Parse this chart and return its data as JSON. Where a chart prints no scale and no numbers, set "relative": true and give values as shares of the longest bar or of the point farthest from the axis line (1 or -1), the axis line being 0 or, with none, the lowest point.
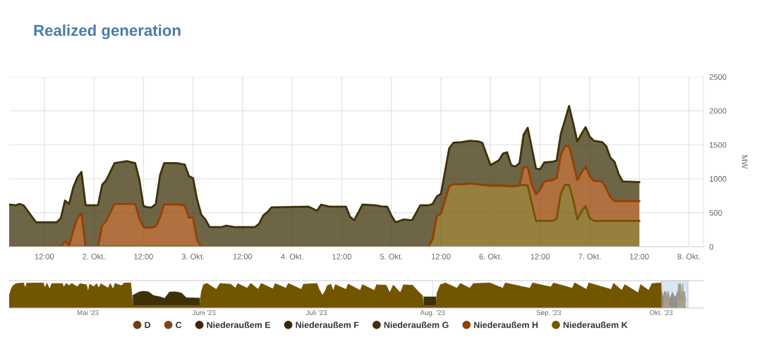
{
  "chart_data": [
    {
      "type": "area",
      "title": "Realized generation",
      "ylabel": "MW",
      "stacked": true,
      "x": [
        "2023-10-01T03:30",
        "2023-10-01T05:00",
        "2023-10-01T06:00",
        "2023-10-01T07:00",
        "2023-10-01T10:00",
        "2023-10-01T15:00",
        "2023-10-01T16:00",
        "2023-10-01T17:00",
        "2023-10-01T18:00",
        "2023-10-01T19:00",
        "2023-10-01T20:00",
        "2023-10-01T21:00",
        "2023-10-01T22:00",
        "2023-10-02T01:00",
        "2023-10-02T02:00",
        "2023-10-02T03:00",
        "2023-10-02T05:00",
        "2023-10-02T08:00",
        "2023-10-02T10:00",
        "2023-10-02T11:00",
        "2023-10-02T12:00",
        "2023-10-02T13:00",
        "2023-10-02T14:00",
        "2023-10-02T15:00",
        "2023-10-02T16:00",
        "2023-10-02T17:00",
        "2023-10-02T20:00",
        "2023-10-02T22:00",
        "2023-10-02T23:00",
        "2023-10-03T00:00",
        "2023-10-03T01:00",
        "2023-10-03T02:00",
        "2023-10-03T03:00",
        "2023-10-03T04:00",
        "2023-10-03T07:00",
        "2023-10-03T08:00",
        "2023-10-03T10:00",
        "2023-10-03T15:00",
        "2023-10-03T16:00",
        "2023-10-03T17:00",
        "2023-10-03T18:00",
        "2023-10-03T19:00",
        "2023-10-04T04:00",
        "2023-10-04T06:00",
        "2023-10-04T07:00",
        "2023-10-04T09:00",
        "2023-10-04T13:00",
        "2023-10-04T14:00",
        "2023-10-04T15:00",
        "2023-10-04T17:00",
        "2023-10-04T20:00",
        "2023-10-04T22:00",
        "2023-10-04T23:00",
        "2023-10-05T00:00",
        "2023-10-05T01:00",
        "2023-10-05T03:00",
        "2023-10-05T05:00",
        "2023-10-05T07:00",
        "2023-10-05T09:00",
        "2023-10-05T10:00",
        "2023-10-05T11:00",
        "2023-10-05T12:00",
        "2023-10-05T14:00",
        "2023-10-05T15:00",
        "2023-10-05T17:00",
        "2023-10-05T19:00",
        "2023-10-05T21:00",
        "2023-10-05T22:00",
        "2023-10-06T00:00",
        "2023-10-06T02:00",
        "2023-10-06T03:00",
        "2023-10-06T04:00",
        "2023-10-06T05:00",
        "2023-10-06T06:00",
        "2023-10-06T07:00",
        "2023-10-06T08:00",
        "2023-10-06T09:00",
        "2023-10-06T10:00",
        "2023-10-06T11:00",
        "2023-10-06T12:00",
        "2023-10-06T13:00",
        "2023-10-06T15:00",
        "2023-10-06T16:00",
        "2023-10-06T17:00",
        "2023-10-06T18:00",
        "2023-10-06T19:00",
        "2023-10-06T20:00",
        "2023-10-06T21:00",
        "2023-10-06T22:00",
        "2023-10-06T23:00",
        "2023-10-07T00:00",
        "2023-10-07T01:00",
        "2023-10-07T03:00",
        "2023-10-07T04:00",
        "2023-10-07T05:00",
        "2023-10-07T06:00",
        "2023-10-07T07:00",
        "2023-10-07T08:00",
        "2023-10-07T12:00"
      ],
      "series": [
        {
          "name": "Niederaußem K",
          "color": "#735500",
          "values": [
            0,
            0,
            0,
            0,
            0,
            0,
            0,
            0,
            0,
            0,
            0,
            0,
            0,
            0,
            0,
            0,
            0,
            0,
            0,
            0,
            0,
            0,
            0,
            0,
            0,
            0,
            0,
            0,
            0,
            0,
            0,
            0,
            0,
            0,
            0,
            0,
            0,
            0,
            0,
            0,
            0,
            0,
            0,
            0,
            0,
            0,
            0,
            0,
            0,
            0,
            0,
            0,
            0,
            0,
            0,
            0,
            0,
            0,
            0,
            120,
            450,
            490,
            890,
            920,
            920,
            930,
            920,
            910,
            900,
            900,
            900,
            890,
            890,
            890,
            900,
            910,
            900,
            630,
            380,
            380,
            380,
            380,
            410,
            780,
            910,
            910,
            690,
            400,
            520,
            600,
            420,
            380,
            380,
            380,
            380,
            380,
            380,
            380,
            380
          ]
        },
        {
          "name": "Niederaußem H",
          "color": "#954000",
          "values": [
            0,
            0,
            0,
            0,
            0,
            0,
            0,
            80,
            20,
            230,
            420,
            490,
            0,
            0,
            310,
            380,
            630,
            630,
            630,
            420,
            290,
            280,
            280,
            300,
            430,
            620,
            620,
            610,
            430,
            430,
            90,
            0,
            0,
            0,
            0,
            0,
            0,
            0,
            0,
            0,
            0,
            0,
            0,
            0,
            0,
            0,
            0,
            0,
            0,
            0,
            0,
            0,
            0,
            0,
            0,
            0,
            0,
            0,
            0,
            0,
            0,
            0,
            0,
            0,
            0,
            0,
            0,
            0,
            0,
            0,
            0,
            0,
            0,
            0,
            0,
            260,
            270,
            280,
            390,
            460,
            580,
            600,
            600,
            570,
            570,
            570,
            550,
            580,
            570,
            580,
            620,
            590,
            580,
            480,
            350,
            290,
            290,
            290,
            290
          ]
        },
        {
          "name": "Niederaußem G",
          "color": "#3d3108",
          "values": [
            620,
            610,
            630,
            610,
            360,
            360,
            420,
            600,
            610,
            640,
            600,
            610,
            610,
            610,
            600,
            600,
            600,
            630,
            600,
            570,
            310,
            300,
            300,
            330,
            620,
            610,
            610,
            600,
            610,
            580,
            600,
            470,
            400,
            290,
            290,
            310,
            290,
            290,
            340,
            460,
            510,
            580,
            590,
            530,
            620,
            590,
            590,
            440,
            390,
            620,
            610,
            590,
            590,
            460,
            360,
            400,
            390,
            610,
            610,
            510,
            290,
            290,
            560,
            610,
            620,
            630,
            630,
            620,
            300,
            370,
            470,
            500,
            310,
            290,
            330,
            480,
            580,
            540,
            380,
            300,
            280,
            270,
            260,
            310,
            380,
            590,
            580,
            570,
            570,
            580,
            580,
            590,
            580,
            620,
            580,
            580,
            400,
            290,
            280
          ]
        },
        {
          "name": "Niederaußem F",
          "color": "#3a2808",
          "values": [
            null,
            null,
            null,
            null,
            null,
            null,
            null,
            null,
            null,
            null,
            null,
            null,
            null,
            null,
            null,
            null,
            null,
            null,
            null,
            null,
            null,
            null,
            null,
            null,
            null,
            null,
            null,
            null,
            null,
            null,
            null,
            null,
            null,
            null,
            null,
            null,
            null,
            null,
            null,
            null,
            null,
            null,
            null,
            null,
            null,
            null,
            null,
            null,
            null,
            null,
            null,
            null,
            null,
            null,
            null,
            null,
            null,
            null,
            null,
            null,
            null,
            null,
            null,
            null,
            null,
            null,
            null,
            null,
            null,
            null,
            null,
            null,
            null,
            null,
            null,
            null,
            null,
            null,
            null,
            null,
            null,
            null,
            null,
            null,
            null,
            null,
            null,
            null,
            null,
            null,
            null,
            null,
            null,
            null,
            null,
            null,
            null,
            null,
            null
          ]
        },
        {
          "name": "Niederaußem E",
          "color": "#42240c",
          "values": [
            null,
            null,
            null,
            null,
            null,
            null,
            null,
            null,
            null,
            null,
            null,
            null,
            null,
            null,
            null,
            null,
            null,
            null,
            null,
            null,
            null,
            null,
            null,
            null,
            null,
            null,
            null,
            null,
            null,
            null,
            null,
            null,
            null,
            null,
            null,
            null,
            null,
            null,
            null,
            null,
            null,
            null,
            null,
            null,
            null,
            null,
            null,
            null,
            null,
            null,
            null,
            null,
            null,
            null,
            null,
            null,
            null,
            null,
            null,
            null,
            null,
            null,
            null,
            null,
            null,
            null,
            null,
            null,
            null,
            null,
            null,
            null,
            null,
            null,
            null,
            null,
            null,
            null,
            null,
            null,
            null,
            null,
            null,
            null,
            null,
            null,
            null,
            null,
            null,
            null,
            null,
            null,
            null,
            null,
            null,
            null,
            null,
            null,
            null
          ]
        },
        {
          "name": "C",
          "color": "#7a4820",
          "values": [
            null,
            null,
            null,
            null,
            null,
            null,
            null,
            null,
            null,
            null,
            null,
            null,
            null,
            null,
            null,
            null,
            null,
            null,
            null,
            null,
            null,
            null,
            null,
            null,
            null,
            null,
            null,
            null,
            null,
            null,
            null,
            null,
            null,
            null,
            null,
            null,
            null,
            null,
            null,
            null,
            null,
            null,
            null,
            null,
            null,
            null,
            null,
            null,
            null,
            null,
            null,
            null,
            null,
            null,
            null,
            null,
            null,
            null,
            null,
            null,
            null,
            null,
            null,
            null,
            null,
            null,
            null,
            null,
            null,
            null,
            null,
            null,
            null,
            null,
            null,
            null,
            null,
            null,
            null,
            null,
            null,
            null,
            null,
            null,
            null,
            null,
            null,
            null,
            null,
            null,
            null,
            null,
            null,
            null,
            null,
            null,
            null,
            null,
            null
          ]
        },
        {
          "name": "D",
          "color": "#6e3c18",
          "values": [
            null,
            null,
            null,
            null,
            null,
            null,
            null,
            null,
            null,
            null,
            null,
            null,
            null,
            null,
            null,
            null,
            null,
            null,
            null,
            null,
            null,
            null,
            null,
            null,
            null,
            null,
            null,
            null,
            null,
            null,
            null,
            null,
            null,
            null,
            null,
            null,
            null,
            null,
            null,
            null,
            null,
            null,
            null,
            null,
            null,
            null,
            null,
            null,
            null,
            null,
            null,
            null,
            null,
            null,
            null,
            null,
            null,
            null,
            null,
            null,
            null,
            null,
            null,
            null,
            null,
            null,
            null,
            null,
            null,
            null,
            null,
            null,
            null,
            null,
            null,
            null,
            null,
            null,
            null,
            null,
            null,
            null,
            null,
            null,
            null,
            null,
            null,
            null,
            null,
            null,
            null,
            null,
            null,
            null,
            null,
            null,
            null,
            null,
            null
          ]
        }
      ],
      "xlim": [
        "2023-10-01T03:30",
        "2023-10-08T03:30"
      ],
      "xticks": [
        {
          "value": "2023-10-01T12:00",
          "label": "12:00"
        },
        {
          "value": "2023-10-02",
          "label": "2. Okt."
        },
        {
          "value": "2023-10-02T12:00",
          "label": "12:00"
        },
        {
          "value": "2023-10-03",
          "label": "3. Okt."
        },
        {
          "value": "2023-10-03T12:00",
          "label": "12:00"
        },
        {
          "value": "2023-10-04",
          "label": "4. Okt."
        },
        {
          "value": "2023-10-04T12:00",
          "label": "12:00"
        },
        {
          "value": "2023-10-05",
          "label": "5. Okt."
        },
        {
          "value": "2023-10-05T12:00",
          "label": "12:00"
        },
        {
          "value": "2023-10-06",
          "label": "6. Okt."
        },
        {
          "value": "2023-10-06T12:00",
          "label": "12:00"
        },
        {
          "value": "2023-10-07",
          "label": "7. Okt."
        },
        {
          "value": "2023-10-07T12:00",
          "label": "12:00"
        },
        {
          "value": "2023-10-08",
          "label": "8. Okt."
        }
      ],
      "ylim": [
        0,
        2500
      ],
      "yticks": [
        0,
        500,
        1000,
        1500,
        2000,
        2500
      ],
      "grid": true,
      "legend": "bottom"
    },
    {
      "type": "area",
      "relative": true,
      "series": [
        {
          "color": "#3d3108",
          "x": [
            "2023-05-13T00:00",
            "2023-05-14T14:00",
            "2023-05-15T19:00",
            "2023-05-17T02:00",
            "2023-05-18T10:00",
            "2023-05-20T07:00",
            "2023-05-21T12:00",
            "2023-05-22T19:00",
            "2023-05-24T07:00",
            "2023-05-25T22:00",
            "2023-05-27T05:00",
            "2023-05-30T22:00",
            "2023-06-15T00:00",
            "2023-07-29T14:00",
            "2023-08-01T22:00",
            "2023-08-15T00:00",
            "2023-10-01T03:30",
            "2023-10-01T12:00",
            "2023-10-01T21:00",
            "2023-10-02T12:00",
            "2023-10-02T20:00",
            "2023-10-03T08:00",
            "2023-10-04T00:00",
            "2023-10-04T15:00",
            "2023-10-05T00:00",
            "2023-10-05T09:00",
            "2023-10-05T12:00",
            "2023-10-05T19:00",
            "2023-10-06T00:00",
            "2023-10-06T09:00",
            "2023-10-06T15:00",
            "2023-10-06T19:00",
            "2023-10-07T04:00",
            "2023-10-07T12:00"
          ],
          "values": [
            0.5,
            0.63,
            0.67,
            0.65,
            0.5,
            0.44,
            0.38,
            0.63,
            0.65,
            0.6,
            0.41,
            0.39,
            null,
            0.44,
            0.44,
            null,
            0.66,
            0.39,
            0.66,
            0.33,
            0.66,
            0.34,
            0.63,
            0.42,
            0.49,
            0.66,
            0.31,
            0.67,
            0.32,
            0.62,
            0.29,
            0.63,
            0.66,
            0.31
          ]
        },
        {
          "color": "#954000",
          "x": [
            "2023-10-01T16:00",
            "2023-10-01T21:00",
            "2023-10-01T22:00",
            "2023-10-02T01:00",
            "2023-10-02T05:00",
            "2023-10-02T11:00",
            "2023-10-02T13:00",
            "2023-10-02T17:00",
            "2023-10-02T23:00",
            "2023-10-03T02:00",
            "2023-10-06T07:00",
            "2023-10-06T15:00",
            "2023-10-07T04:00",
            "2023-10-07T12:00"
          ],
          "values": [
            0,
            0.52,
            0,
            0,
            0.67,
            0.45,
            0.3,
            0.67,
            0.47,
            0,
            0,
            0.64,
            0.51,
            0.31
          ]
        },
        {
          "color": "#735500",
          "x": [
            "2023-04-10T00:00",
            "2023-04-10T12:00",
            "2023-04-11T00:00",
            "2023-04-11T22:00",
            "2023-04-13T19:00",
            "2023-04-14T07:00",
            "2023-04-14T17:00",
            "2023-04-19T02:00",
            "2023-04-19T14:00",
            "2023-04-20T02:00",
            "2023-04-20T19:00",
            "2023-04-21T10:00",
            "2023-04-24T04:00",
            "2023-04-24T14:00",
            "2023-04-25T05:00",
            "2023-04-26T00:00",
            "2023-04-26T17:00",
            "2023-04-28T05:00",
            "2023-04-28T22:00",
            "2023-04-30T14:00",
            "2023-05-01T02:00",
            "2023-05-01T12:00",
            "2023-05-02T14:00",
            "2023-05-03T07:00",
            "2023-05-03T22:00",
            "2023-05-04T12:00",
            "2023-05-06T10:00",
            "2023-05-07T00:00",
            "2023-05-07T17:00",
            "2023-05-08T07:00",
            "2023-05-10T02:00",
            "2023-05-10T17:00",
            "2023-05-12T10:00",
            "2023-05-13T00:00",
            "2023-05-30T22:00",
            "2023-05-31T07:00",
            "2023-05-31T22:00",
            "2023-06-01T19:00",
            "2023-06-04T07:00",
            "2023-06-05T07:00",
            "2023-06-08T02:00",
            "2023-06-09T10:00",
            "2023-06-10T00:00",
            "2023-06-12T12:00",
            "2023-06-13T12:00",
            "2023-06-15T10:00",
            "2023-06-16T07:00",
            "2023-06-19T10:00",
            "2023-06-20T00:00",
            "2023-06-22T22:00",
            "2023-06-23T12:00",
            "2023-06-27T00:00",
            "2023-06-27T14:00",
            "2023-07-01T02:00",
            "2023-07-01T17:00",
            "2023-07-02T14:00",
            "2023-07-03T10:00",
            "2023-07-03T22:00",
            "2023-07-04T20:00",
            "2023-07-05T12:00",
            "2023-07-06T02:00",
            "2023-07-08T22:00",
            "2023-07-09T12:00",
            "2023-07-12T17:00",
            "2023-07-13T07:00",
            "2023-07-16T12:00",
            "2023-07-17T02:00",
            "2023-07-19T14:00",
            "2023-07-20T14:00",
            "2023-07-21T12:00",
            "2023-07-23T10:00",
            "2023-07-24T07:00",
            "2023-07-26T14:00",
            "2023-07-28T12:00",
            "2023-07-29T05:00",
            "2023-07-29T14:00",
            "2023-08-01T22:00",
            "2023-08-02T05:00",
            "2023-08-03T02:00",
            "2023-08-04T10:00",
            "2023-08-07T12:00",
            "2023-08-08T10:00",
            "2023-08-10T22:00",
            "2023-08-11T22:00",
            "2023-08-16T07:00",
            "2023-08-19T19:00",
            "2023-08-20T10:00",
            "2023-08-27T00:00",
            "2023-08-27T17:00",
            "2023-09-01T14:00",
            "2023-09-02T07:00",
            "2023-09-07T07:00",
            "2023-09-07T22:00",
            "2023-09-11T02:00",
            "2023-09-11T17:00",
            "2023-09-17T17:00",
            "2023-09-18T07:00",
            "2023-09-20T12:00",
            "2023-09-21T07:00",
            "2023-09-24T22:00",
            "2023-09-25T12:00",
            "2023-09-27T17:00",
            "2023-09-28T14:00",
            "2023-09-30T22:00",
            "2023-10-01T03:30",
            "2023-10-05T09:00",
            "2023-10-05T11:00",
            "2023-10-05T14:00",
            "2023-10-06T06:00",
            "2023-10-06T11:00",
            "2023-10-06T17:00",
            "2023-10-06T19:00",
            "2023-10-06T21:00",
            "2023-10-07T12:00"
          ],
          "values": [
            0.46,
            0.74,
            0.88,
            0.98,
            1.0,
            0.79,
            0.99,
            1.0,
            0.79,
            0.99,
            0.74,
            0.98,
            0.98,
            0.82,
            0.98,
            0.89,
            0.98,
            0.84,
            0.97,
            0.93,
            0.63,
            0.95,
            0.84,
            0.97,
            0.79,
            0.97,
            0.79,
            0.97,
            0.74,
            0.98,
            0.89,
            1.0,
            1.0,
            0.1,
            0.1,
            0.65,
            0.93,
            0.98,
            0.74,
            0.98,
            0.95,
            0.79,
            0.97,
            0.79,
            0.98,
            0.74,
            0.98,
            0.76,
            0.97,
            0.79,
            0.98,
            0.74,
            0.95,
            0.98,
            0.74,
            0.5,
            0.7,
            0.89,
            0.95,
            0.67,
            0.93,
            0.74,
            0.95,
            0.7,
            0.93,
            0.7,
            0.93,
            0.91,
            0.6,
            0.91,
            0.6,
            0.93,
            0.91,
            0.6,
            0.5,
            0.1,
            0.1,
            0.6,
            0.93,
            1.0,
            0.79,
            0.98,
            0.79,
            0.98,
            1.0,
            0.79,
            1.0,
            0.79,
            1.0,
            0.84,
            1.0,
            0.79,
            1.0,
            0.74,
            1.0,
            0.74,
            0.98,
            0.7,
            0.93,
            0.6,
            0.93,
            0.7,
            0.98,
            1.0,
            0,
            0,
            0.48,
            0.96,
            0.96,
            0.4,
            0.84,
            0.98,
            0.43,
            0.4
          ]
        }
      ],
      "xlim": [
        "2023-04-10",
        "2023-10-12T06:00"
      ],
      "xticks": [
        {
          "value": "2023-05-01",
          "label": "Mai '23"
        },
        {
          "value": "2023-06-01",
          "label": "Juni '23"
        },
        {
          "value": "2023-07-01",
          "label": "Juli '23"
        },
        {
          "value": "2023-08-01",
          "label": "Aug. '23"
        },
        {
          "value": "2023-09-01",
          "label": "Sep. '23"
        },
        {
          "value": "2023-10-01",
          "label": "Okt. '23"
        }
      ],
      "grid": "x",
      "tick_labels": "x",
      "bands": [
        {
          "axis": "x",
          "from": "2023-10-01T03:30",
          "to": "2023-10-08T03:30",
          "color": "#c6d4ea"
        }
      ]
    }
  ]
}
